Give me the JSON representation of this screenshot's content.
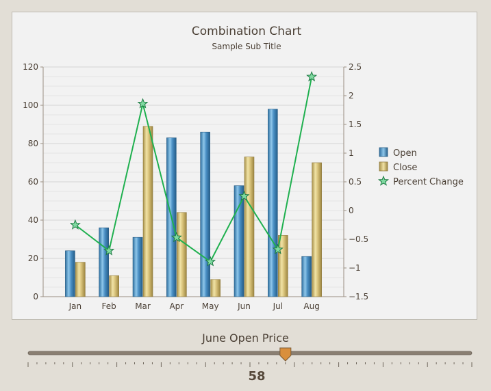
{
  "chart_data": {
    "type": "bar",
    "title": "Combination Chart",
    "subtitle": "Sample Sub Title",
    "categories": [
      "Jan",
      "Feb",
      "Mar",
      "Apr",
      "May",
      "Jun",
      "Jul",
      "Aug"
    ],
    "series": [
      {
        "name": "Open",
        "type": "bar",
        "axis": "left",
        "color": "#4a8fc4",
        "values": [
          24,
          36,
          31,
          83,
          86,
          58,
          98,
          21
        ]
      },
      {
        "name": "Close",
        "type": "bar",
        "axis": "left",
        "color": "#d8c27a",
        "values": [
          18,
          11,
          89,
          44,
          9,
          73,
          32,
          70
        ]
      },
      {
        "name": "Percent Change",
        "type": "line",
        "axis": "right",
        "color": "#1fb04f",
        "marker": "star",
        "values": [
          -0.25,
          -0.7,
          1.86,
          -0.47,
          -0.89,
          0.25,
          -0.68,
          2.33
        ]
      }
    ],
    "y_left": {
      "min": 0,
      "max": 120,
      "ticks": [
        0,
        20,
        40,
        60,
        80,
        100,
        120
      ]
    },
    "y_right": {
      "min": -1.5,
      "max": 2.5,
      "ticks": [
        "2.5",
        "2",
        "1.5",
        "1",
        "0.5",
        "0",
        "-0.5",
        "-1",
        "-1.5"
      ]
    },
    "grid": true,
    "legend_position": "right"
  },
  "slider": {
    "title": "June Open Price",
    "value": "58",
    "value_fraction": 0.58
  }
}
